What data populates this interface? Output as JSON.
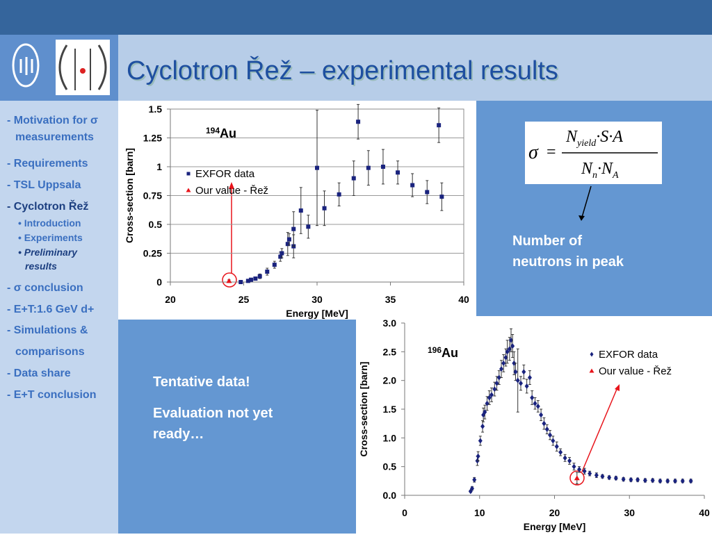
{
  "title": "Cyclotron Řež – experimental results",
  "sidebar": [
    "- Motivation for σ",
    "measurements",
    "- Requirements",
    "- TSL Uppsala",
    "- Cyclotron Řež",
    "• Introduction",
    "• Experiments",
    "• Preliminary",
    "results",
    "- σ conclusion",
    "- E+T:1.6 GeV d+",
    "- Simulations &",
    "comparisons",
    "- Data share",
    "- E+T conclusion"
  ],
  "formula": {
    "lhs": "σ",
    "eq": "=",
    "num_n": "N",
    "num_sub": "yield",
    "num_rest": "·S·A",
    "den_n": "N",
    "den_sub1": "n",
    "den_mid": "·N",
    "den_sub2": "A"
  },
  "formula_note": [
    "Number of",
    "neutrons in peak"
  ],
  "notes": [
    "Tentative data!",
    "Evaluation not yet",
    "ready…"
  ],
  "chart_data": [
    {
      "type": "scatter",
      "annotation": {
        "mass": "194",
        "element": "Au"
      },
      "xlabel": "Energy [MeV]",
      "ylabel": "Cross-section [barn]",
      "xlim": [
        20,
        40
      ],
      "xticks": [
        20,
        25,
        30,
        35,
        40
      ],
      "ylim": [
        0,
        1.5
      ],
      "yticks": [
        0,
        0.25,
        0.5,
        0.75,
        1,
        1.25,
        1.5
      ],
      "grid": true,
      "legend": "center left",
      "series": [
        {
          "name": "EXFOR data",
          "color": "#1a237e",
          "marker": "square",
          "x": [
            24.8,
            25.3,
            25.5,
            25.8,
            26.1,
            26.6,
            27.1,
            27.5,
            27.6,
            28.0,
            28.1,
            28.4,
            28.4,
            28.9,
            29.4,
            30.0,
            30.5,
            31.5,
            32.5,
            32.8,
            33.5,
            34.5,
            35.5,
            36.5,
            37.5,
            38.3,
            38.5
          ],
          "values": [
            0.0,
            0.01,
            0.02,
            0.03,
            0.05,
            0.09,
            0.15,
            0.22,
            0.25,
            0.33,
            0.37,
            0.31,
            0.46,
            0.62,
            0.48,
            0.99,
            0.64,
            0.76,
            0.9,
            1.39,
            0.99,
            1.0,
            0.95,
            0.84,
            0.78,
            1.36,
            0.74
          ],
          "errors": [
            0.01,
            0.01,
            0.01,
            0.01,
            0.02,
            0.03,
            0.03,
            0.04,
            0.04,
            0.1,
            0.05,
            0.1,
            0.15,
            0.2,
            0.1,
            0.5,
            0.15,
            0.1,
            0.15,
            0.15,
            0.15,
            0.15,
            0.1,
            0.1,
            0.1,
            0.15,
            0.12
          ]
        },
        {
          "name": "Our value - Řež",
          "color": "#e8141b",
          "marker": "triangle",
          "x": [
            24.0
          ],
          "values": [
            0.01
          ],
          "errors": [
            0.01
          ]
        }
      ]
    },
    {
      "type": "scatter",
      "annotation": {
        "mass": "196",
        "element": "Au"
      },
      "xlabel": "Energy [MeV]",
      "ylabel": "Cross-section [barn]",
      "xlim": [
        0,
        40
      ],
      "xticks": [
        0,
        10,
        20,
        30,
        40
      ],
      "ylim": [
        0,
        3
      ],
      "yticks": [
        {
          "value": 0,
          "label": "0.0"
        },
        {
          "value": 0.5,
          "label": "0.5"
        },
        {
          "value": 1,
          "label": "1.0"
        },
        {
          "value": 1.5,
          "label": "1.5"
        },
        {
          "value": 2,
          "label": "2.0"
        },
        {
          "value": 2.5,
          "label": "2.5"
        },
        {
          "value": 3,
          "label": "3.0"
        }
      ],
      "grid": false,
      "legend": "upper right",
      "series": [
        {
          "name": "EXFOR data",
          "color": "#1a237e",
          "marker": "diamond",
          "x": [
            8.8,
            9.0,
            9.3,
            9.7,
            9.8,
            10.1,
            10.4,
            10.5,
            10.7,
            11.0,
            11.3,
            11.6,
            12.0,
            12.3,
            12.6,
            12.9,
            13.2,
            13.5,
            13.7,
            14.0,
            14.2,
            14.4,
            14.6,
            14.8,
            15.1,
            15.5,
            15.9,
            16.3,
            16.7,
            17.0,
            17.4,
            17.8,
            18.2,
            18.6,
            19.0,
            19.4,
            19.8,
            20.3,
            20.8,
            21.4,
            22.0,
            22.6,
            23.3,
            24.0,
            24.7,
            25.6,
            26.4,
            27.3,
            28.2,
            29.2,
            30.2,
            31.1,
            32.1,
            33.1,
            34.1,
            35.1,
            36.1,
            37.1,
            38.2
          ],
          "values": [
            0.07,
            0.12,
            0.27,
            0.6,
            0.68,
            0.95,
            1.2,
            1.4,
            1.45,
            1.6,
            1.7,
            1.75,
            1.85,
            1.95,
            2.05,
            2.2,
            2.3,
            2.4,
            2.5,
            2.55,
            2.7,
            2.6,
            2.3,
            2.15,
            2.0,
            1.95,
            2.15,
            1.9,
            2.05,
            1.7,
            1.6,
            1.55,
            1.4,
            1.25,
            1.15,
            1.05,
            0.95,
            0.85,
            0.75,
            0.65,
            0.6,
            0.5,
            0.45,
            0.42,
            0.38,
            0.35,
            0.33,
            0.31,
            0.3,
            0.28,
            0.27,
            0.27,
            0.26,
            0.26,
            0.25,
            0.25,
            0.25,
            0.25,
            0.25
          ],
          "errors": [
            0.02,
            0.03,
            0.04,
            0.08,
            0.08,
            0.08,
            0.1,
            0.12,
            0.12,
            0.12,
            0.12,
            0.12,
            0.12,
            0.12,
            0.12,
            0.15,
            0.15,
            0.15,
            0.2,
            0.2,
            0.2,
            0.2,
            0.2,
            0.15,
            0.55,
            0.12,
            0.12,
            0.12,
            0.12,
            0.12,
            0.1,
            0.1,
            0.1,
            0.1,
            0.08,
            0.08,
            0.08,
            0.08,
            0.06,
            0.06,
            0.06,
            0.06,
            0.05,
            0.05,
            0.04,
            0.04,
            0.03,
            0.03,
            0.03,
            0.03,
            0.03,
            0.03,
            0.03,
            0.03,
            0.03,
            0.03,
            0.03,
            0.03,
            0.03
          ]
        },
        {
          "name": "Our value - Řež",
          "color": "#e8141b",
          "marker": "triangle",
          "x": [
            23.0
          ],
          "values": [
            0.3
          ],
          "errors": [
            0.1
          ]
        }
      ]
    }
  ]
}
